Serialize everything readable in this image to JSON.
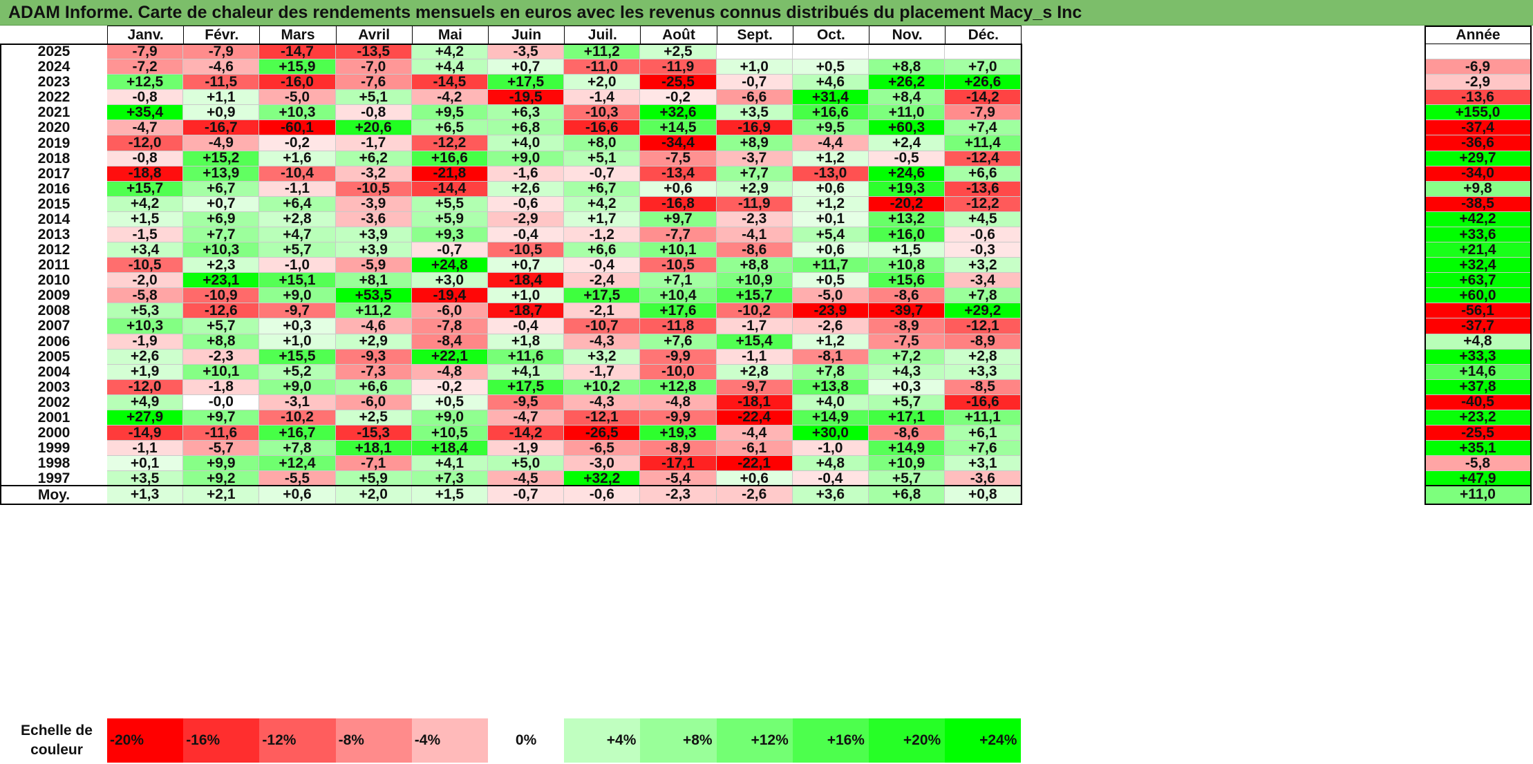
{
  "title": "ADAM Informe. Carte de chaleur des rendements mensuels en euros avec les revenus connus distribués du placement Macy_s Inc",
  "chart_data": {
    "type": "heatmap",
    "title": "ADAM Informe. Carte de chaleur des rendements mensuels en euros avec les revenus connus distribués du placement Macy_s Inc",
    "months": [
      "Janv.",
      "Févr.",
      "Mars",
      "Avril",
      "Mai",
      "Juin",
      "Juil.",
      "Août",
      "Sept.",
      "Oct.",
      "Nov.",
      "Déc."
    ],
    "year_header": "Année",
    "avg_label": "Moy.",
    "rows": [
      {
        "year": "2025",
        "values": [
          "-7,9",
          "-7,9",
          "-14,7",
          "-13,5",
          "+4,2",
          "-3,5",
          "+11,2",
          "+2,5",
          "",
          "",
          "",
          ""
        ],
        "annual": ""
      },
      {
        "year": "2024",
        "values": [
          "-7,2",
          "-4,6",
          "+15,9",
          "-7,0",
          "+4,4",
          "+0,7",
          "-11,0",
          "-11,9",
          "+1,0",
          "+0,5",
          "+8,8",
          "+7,0"
        ],
        "annual": "-6,9"
      },
      {
        "year": "2023",
        "values": [
          "+12,5",
          "-11,5",
          "-16,0",
          "-7,6",
          "-14,5",
          "+17,5",
          "+2,0",
          "-25,5",
          "-0,7",
          "+4,6",
          "+26,2",
          "+26,6"
        ],
        "annual": "-2,9"
      },
      {
        "year": "2022",
        "values": [
          "-0,8",
          "+1,1",
          "-5,0",
          "+5,1",
          "-4,2",
          "-19,5",
          "-1,4",
          "-0,2",
          "-6,6",
          "+31,4",
          "+8,4",
          "-14,2"
        ],
        "annual": "-13,6"
      },
      {
        "year": "2021",
        "values": [
          "+35,4",
          "+0,9",
          "+10,3",
          "-0,8",
          "+9,5",
          "+6,3",
          "-10,3",
          "+32,6",
          "+3,5",
          "+16,6",
          "+11,0",
          "-7,9"
        ],
        "annual": "+155,0"
      },
      {
        "year": "2020",
        "values": [
          "-4,7",
          "-16,7",
          "-60,1",
          "+20,6",
          "+6,5",
          "+6,8",
          "-16,6",
          "+14,5",
          "-16,9",
          "+9,5",
          "+60,3",
          "+7,4"
        ],
        "annual": "-37,4"
      },
      {
        "year": "2019",
        "values": [
          "-12,0",
          "-4,9",
          "-0,2",
          "-1,7",
          "-12,2",
          "+4,0",
          "+8,0",
          "-34,4",
          "+8,9",
          "-4,4",
          "+2,4",
          "+11,4"
        ],
        "annual": "-36,6"
      },
      {
        "year": "2018",
        "values": [
          "-0,8",
          "+15,2",
          "+1,6",
          "+6,2",
          "+16,6",
          "+9,0",
          "+5,1",
          "-7,5",
          "-3,7",
          "+1,2",
          "-0,5",
          "-12,4"
        ],
        "annual": "+29,7"
      },
      {
        "year": "2017",
        "values": [
          "-18,8",
          "+13,9",
          "-10,4",
          "-3,2",
          "-21,8",
          "-1,6",
          "-0,7",
          "-13,4",
          "+7,7",
          "-13,0",
          "+24,6",
          "+6,6"
        ],
        "annual": "-34,0"
      },
      {
        "year": "2016",
        "values": [
          "+15,7",
          "+6,7",
          "-1,1",
          "-10,5",
          "-14,4",
          "+2,6",
          "+6,7",
          "+0,6",
          "+2,9",
          "+0,6",
          "+19,3",
          "-13,6"
        ],
        "annual": "+9,8"
      },
      {
        "year": "2015",
        "values": [
          "+4,2",
          "+0,7",
          "+6,4",
          "-3,9",
          "+5,5",
          "-0,6",
          "+4,2",
          "-16,8",
          "-11,9",
          "+1,2",
          "-20,2",
          "-12,2"
        ],
        "annual": "-38,5"
      },
      {
        "year": "2014",
        "values": [
          "+1,5",
          "+6,9",
          "+2,8",
          "-3,6",
          "+5,9",
          "-2,9",
          "+1,7",
          "+9,7",
          "-2,3",
          "+0,1",
          "+13,2",
          "+4,5"
        ],
        "annual": "+42,2"
      },
      {
        "year": "2013",
        "values": [
          "-1,5",
          "+7,7",
          "+4,7",
          "+3,9",
          "+9,3",
          "-0,4",
          "-1,2",
          "-7,7",
          "-4,1",
          "+5,4",
          "+16,0",
          "-0,6"
        ],
        "annual": "+33,6"
      },
      {
        "year": "2012",
        "values": [
          "+3,4",
          "+10,3",
          "+5,7",
          "+3,9",
          "-0,7",
          "-10,5",
          "+6,6",
          "+10,1",
          "-8,6",
          "+0,6",
          "+1,5",
          "-0,3"
        ],
        "annual": "+21,4"
      },
      {
        "year": "2011",
        "values": [
          "-10,5",
          "+2,3",
          "-1,0",
          "-5,9",
          "+24,8",
          "+0,7",
          "-0,4",
          "-10,5",
          "+8,8",
          "+11,7",
          "+10,8",
          "+3,2"
        ],
        "annual": "+32,4"
      },
      {
        "year": "2010",
        "values": [
          "-2,0",
          "+23,1",
          "+15,1",
          "+8,1",
          "+3,0",
          "-18,4",
          "-2,4",
          "+7,1",
          "+10,9",
          "+0,5",
          "+15,6",
          "-3,4"
        ],
        "annual": "+63,7"
      },
      {
        "year": "2009",
        "values": [
          "-5,8",
          "-10,9",
          "+9,0",
          "+53,5",
          "-19,4",
          "+1,0",
          "+17,5",
          "+10,4",
          "+15,7",
          "-5,0",
          "-8,6",
          "+7,8"
        ],
        "annual": "+60,0"
      },
      {
        "year": "2008",
        "values": [
          "+5,3",
          "-12,6",
          "-9,7",
          "+11,2",
          "-6,0",
          "-18,7",
          "-2,1",
          "+17,6",
          "-10,2",
          "-23,9",
          "-39,7",
          "+29,2"
        ],
        "annual": "-56,1"
      },
      {
        "year": "2007",
        "values": [
          "+10,3",
          "+5,7",
          "+0,3",
          "-4,6",
          "-7,8",
          "-0,4",
          "-10,7",
          "-11,8",
          "-1,7",
          "-2,6",
          "-8,9",
          "-12,1"
        ],
        "annual": "-37,7"
      },
      {
        "year": "2006",
        "values": [
          "-1,9",
          "+8,8",
          "+1,0",
          "+2,9",
          "-8,4",
          "+1,8",
          "-4,3",
          "+7,6",
          "+15,4",
          "+1,2",
          "-7,5",
          "-8,9"
        ],
        "annual": "+4,8"
      },
      {
        "year": "2005",
        "values": [
          "+2,6",
          "-2,3",
          "+15,5",
          "-9,3",
          "+22,1",
          "+11,6",
          "+3,2",
          "-9,9",
          "-1,1",
          "-8,1",
          "+7,2",
          "+2,8"
        ],
        "annual": "+33,3"
      },
      {
        "year": "2004",
        "values": [
          "+1,9",
          "+10,1",
          "+5,2",
          "-7,3",
          "-4,8",
          "+4,1",
          "-1,7",
          "-10,0",
          "+2,8",
          "+7,8",
          "+4,3",
          "+3,3"
        ],
        "annual": "+14,6"
      },
      {
        "year": "2003",
        "values": [
          "-12,0",
          "-1,8",
          "+9,0",
          "+6,6",
          "-0,2",
          "+17,5",
          "+10,2",
          "+12,8",
          "-9,7",
          "+13,8",
          "+0,3",
          "-8,5"
        ],
        "annual": "+37,8"
      },
      {
        "year": "2002",
        "values": [
          "+4,9",
          "-0,0",
          "-3,1",
          "-6,0",
          "+0,5",
          "-9,5",
          "-4,3",
          "-4,8",
          "-18,1",
          "+4,0",
          "+5,7",
          "-16,6"
        ],
        "annual": "-40,5"
      },
      {
        "year": "2001",
        "values": [
          "+27,9",
          "+9,7",
          "-10,2",
          "+2,5",
          "+9,0",
          "-4,7",
          "-12,1",
          "-9,9",
          "-22,4",
          "+14,9",
          "+17,1",
          "+11,1"
        ],
        "annual": "+23,2"
      },
      {
        "year": "2000",
        "values": [
          "-14,9",
          "-11,6",
          "+16,7",
          "-15,3",
          "+10,5",
          "-14,2",
          "-26,5",
          "+19,3",
          "-4,4",
          "+30,0",
          "-8,6",
          "+6,1"
        ],
        "annual": "-25,5"
      },
      {
        "year": "1999",
        "values": [
          "-1,1",
          "-5,7",
          "+7,8",
          "+18,1",
          "+18,4",
          "-1,9",
          "-6,5",
          "-8,9",
          "-6,1",
          "-1,0",
          "+14,9",
          "+7,6"
        ],
        "annual": "+35,1"
      },
      {
        "year": "1998",
        "values": [
          "+0,1",
          "+9,9",
          "+12,4",
          "-7,1",
          "+4,1",
          "+5,0",
          "-3,0",
          "-17,1",
          "-22,1",
          "+4,8",
          "+10,9",
          "+3,1"
        ],
        "annual": "-5,8"
      },
      {
        "year": "1997",
        "values": [
          "+3,5",
          "+9,2",
          "-5,5",
          "+5,9",
          "+7,3",
          "-4,5",
          "+32,2",
          "-5,4",
          "+0,6",
          "-0,4",
          "+5,7",
          "-3,6"
        ],
        "annual": "+47,9"
      }
    ],
    "average": {
      "values": [
        "+1,3",
        "+2,1",
        "+0,6",
        "+2,0",
        "+1,5",
        "-0,7",
        "-0,6",
        "-2,3",
        "-2,6",
        "+3,6",
        "+6,8",
        "+0,8"
      ],
      "annual": "+11,0"
    },
    "scale_label": "Echelle de couleur",
    "scale": [
      {
        "label": "-20%",
        "value": -20
      },
      {
        "label": "-16%",
        "value": -16
      },
      {
        "label": "-12%",
        "value": -12
      },
      {
        "label": "-8%",
        "value": -8
      },
      {
        "label": "-4%",
        "value": -4
      },
      {
        "label": "0%",
        "value": 0
      },
      {
        "label": "+4%",
        "value": 4
      },
      {
        "label": "+8%",
        "value": 8
      },
      {
        "label": "+12%",
        "value": 12
      },
      {
        "label": "+16%",
        "value": 16
      },
      {
        "label": "+20%",
        "value": 20
      },
      {
        "label": "+24%",
        "value": 24
      }
    ],
    "colors": {
      "negative": "#ff0000",
      "neutral": "#ffffff",
      "positive": "#00ff00",
      "title_bar": "#7cbe6a"
    }
  }
}
